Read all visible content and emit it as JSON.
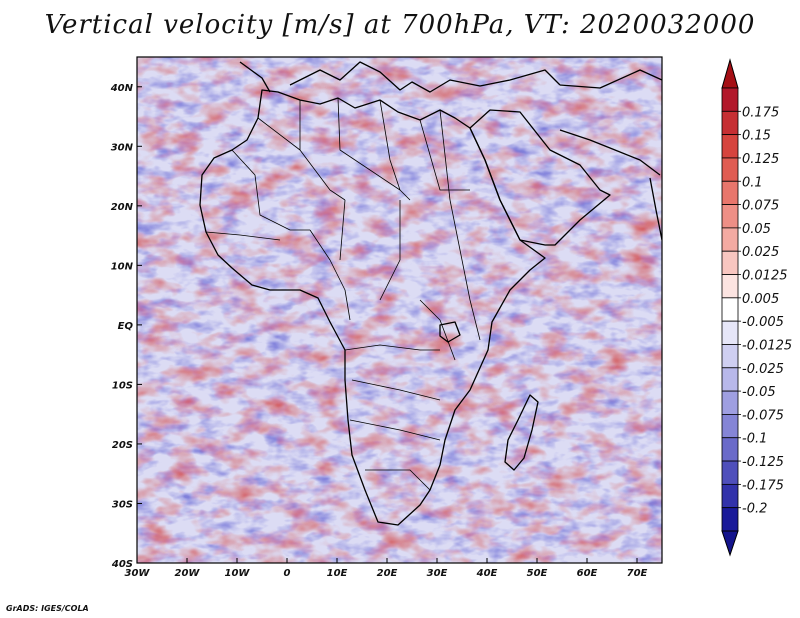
{
  "title": "Vertical velocity [m/s] at 700hPa, VT: 2020032000",
  "credit": "GrADS: IGES/COLA",
  "lat_ticks": [
    "40N",
    "30N",
    "20N",
    "10N",
    "EQ",
    "10S",
    "20S",
    "30S",
    "40S"
  ],
  "lon_ticks": [
    "30W",
    "20W",
    "10W",
    "0",
    "10E",
    "20E",
    "30E",
    "40E",
    "50E",
    "60E",
    "70E"
  ],
  "colorbar": {
    "labels": [
      "0.175",
      "0.15",
      "0.125",
      "0.1",
      "0.075",
      "0.05",
      "0.025",
      "0.0125",
      "0.005",
      "-0.005",
      "-0.0125",
      "-0.025",
      "-0.05",
      "-0.075",
      "-0.1",
      "-0.125",
      "-0.175",
      "-0.2"
    ],
    "colors": [
      "#b2182b",
      "#c62f33",
      "#d6443e",
      "#e05c52",
      "#e8766c",
      "#ee8f86",
      "#f3aaa2",
      "#f8c6c0",
      "#fce4e1",
      "#ffffff",
      "#e6e6f8",
      "#cfcff1",
      "#b8b8ea",
      "#9f9fe1",
      "#8585d6",
      "#6a6ac9",
      "#4f4fbb",
      "#3232aa",
      "#1a1a99"
    ],
    "high_color": "#a50f15",
    "low_color": "#14148c"
  },
  "chart_data": {
    "type": "heatmap",
    "title": "Vertical velocity [m/s] at 700hPa, VT: 2020032000",
    "variable": "Vertical velocity",
    "units": "m/s",
    "level": "700hPa",
    "valid_time": "2020032000",
    "x_range_deg": [
      -30,
      75
    ],
    "y_range_deg": [
      -40,
      45
    ],
    "x_tick_values": [
      -30,
      -20,
      -10,
      0,
      10,
      20,
      30,
      40,
      50,
      60,
      70
    ],
    "y_tick_values": [
      40,
      30,
      20,
      10,
      0,
      -10,
      -20,
      -30,
      -40
    ],
    "levels": [
      0.175,
      0.15,
      0.125,
      0.1,
      0.075,
      0.05,
      0.025,
      0.0125,
      0.005,
      -0.005,
      -0.0125,
      -0.025,
      -0.05,
      -0.075,
      -0.1,
      -0.125,
      -0.175,
      -0.2
    ]
  }
}
